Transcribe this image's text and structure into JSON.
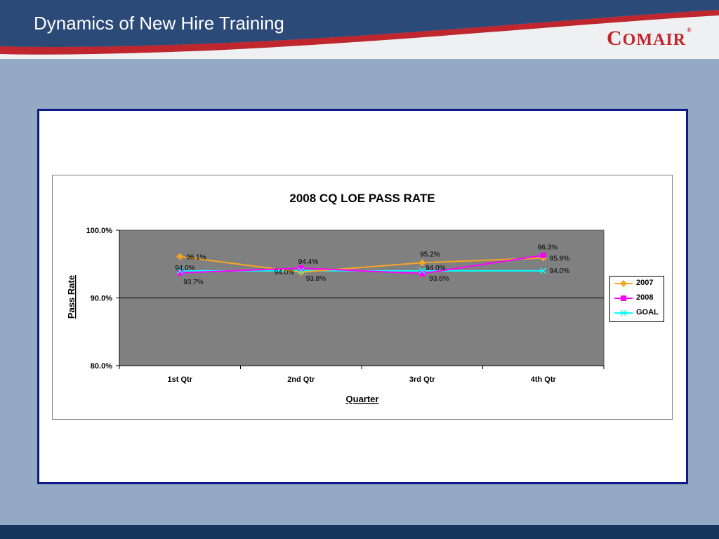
{
  "slide": {
    "title": "Dynamics of New Hire Training"
  },
  "logo": {
    "text": "COMAIR",
    "colors": {
      "red": "#c0262d"
    }
  },
  "colors": {
    "series_2007": "#f5a623",
    "series_2008": "#ff00ff",
    "series_goal": "#00ffff",
    "plot_bg": "#808080",
    "frame_border": "#0c1a8c",
    "slide_bg": "#94a9c4",
    "header_bg": "#2b4a78"
  },
  "chart_data": {
    "type": "line",
    "title": "2008 CQ LOE PASS RATE",
    "xlabel": "Quarter",
    "ylabel": "Pass Rate",
    "categories": [
      "1st Qtr",
      "2nd Qtr",
      "3rd Qtr",
      "4th Qtr"
    ],
    "ylim": [
      80.0,
      100.0
    ],
    "yticks": [
      "80.0%",
      "90.0%",
      "100.0%"
    ],
    "grid": "horizontal",
    "legend": "right",
    "series": [
      {
        "name": "2007",
        "values": [
          96.1,
          93.8,
          95.2,
          95.9
        ],
        "labels": [
          "96.1%",
          "93.8%",
          "95.2%",
          "95.9%"
        ],
        "color": "#f5a623",
        "marker": "diamond"
      },
      {
        "name": "2008",
        "values": [
          93.7,
          94.4,
          93.6,
          96.3
        ],
        "labels": [
          "93.7%",
          "94.4%",
          "93.6%",
          "96.3%"
        ],
        "color": "#ff00ff",
        "marker": "square"
      },
      {
        "name": "GOAL",
        "values": [
          94.0,
          94.0,
          94.0,
          94.0
        ],
        "labels": [
          "94.0%",
          "94.0%",
          "94.0%",
          "94.0%"
        ],
        "color": "#00ffff",
        "marker": "x"
      }
    ]
  }
}
